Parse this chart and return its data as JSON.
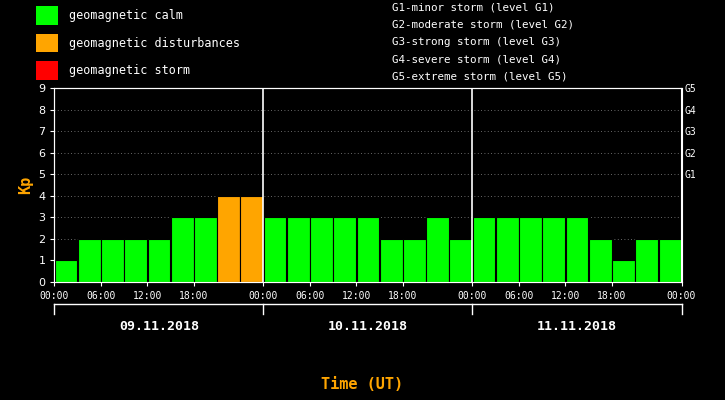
{
  "background_color": "#000000",
  "plot_bg_color": "#000000",
  "bar_values": [
    1,
    2,
    2,
    2,
    2,
    3,
    3,
    4,
    4,
    3,
    3,
    3,
    3,
    3,
    2,
    2,
    3,
    2,
    3,
    3,
    3,
    3,
    3,
    2,
    1,
    2,
    2
  ],
  "bar_colors": [
    "#00ff00",
    "#00ff00",
    "#00ff00",
    "#00ff00",
    "#00ff00",
    "#00ff00",
    "#00ff00",
    "#ffa500",
    "#ffa500",
    "#00ff00",
    "#00ff00",
    "#00ff00",
    "#00ff00",
    "#00ff00",
    "#00ff00",
    "#00ff00",
    "#00ff00",
    "#00ff00",
    "#00ff00",
    "#00ff00",
    "#00ff00",
    "#00ff00",
    "#00ff00",
    "#00ff00",
    "#00ff00",
    "#00ff00",
    "#00ff00"
  ],
  "num_bars": 27,
  "ylim": [
    0,
    9
  ],
  "yticks": [
    0,
    1,
    2,
    3,
    4,
    5,
    6,
    7,
    8,
    9
  ],
  "ylabel": "Kp",
  "ylabel_color": "#ffa500",
  "xlabel": "Time (UT)",
  "xlabel_color": "#ffa500",
  "day_labels": [
    "09.11.2018",
    "10.11.2018",
    "11.11.2018"
  ],
  "xtick_labels": [
    "00:00",
    "06:00",
    "12:00",
    "18:00",
    "00:00",
    "06:00",
    "12:00",
    "18:00",
    "00:00",
    "06:00",
    "12:00",
    "18:00",
    "00:00"
  ],
  "right_ytick_labels": [
    "G1",
    "G2",
    "G3",
    "G4",
    "G5"
  ],
  "right_ytick_positions": [
    5,
    6,
    7,
    8,
    9
  ],
  "legend_items": [
    {
      "color": "#00ff00",
      "label": "geomagnetic calm"
    },
    {
      "color": "#ffa500",
      "label": "geomagnetic disturbances"
    },
    {
      "color": "#ff0000",
      "label": "geomagnetic storm"
    }
  ],
  "right_legend_lines": [
    "G1-minor storm (level G1)",
    "G2-moderate storm (level G2)",
    "G3-strong storm (level G3)",
    "G4-severe storm (level G4)",
    "G5-extreme storm (level G5)"
  ],
  "text_color": "#ffffff",
  "grid_color": "#ffffff",
  "divider_color": "#ffffff",
  "tick_color": "#ffffff",
  "axis_color": "#ffffff",
  "font_family": "monospace"
}
